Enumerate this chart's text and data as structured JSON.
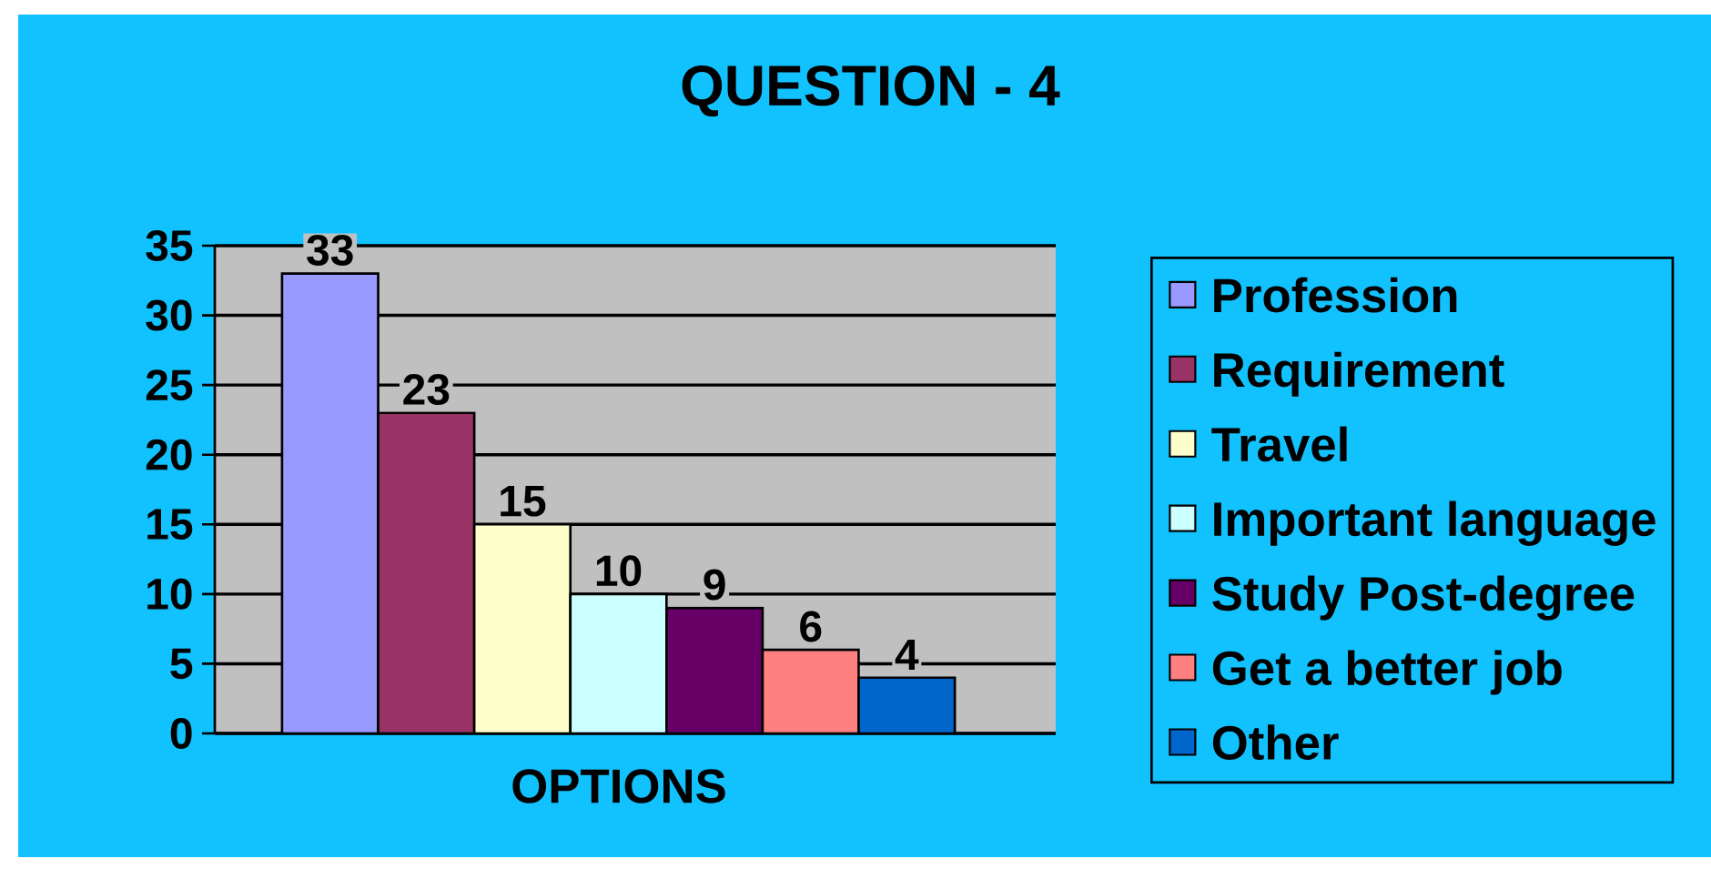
{
  "chart_data": {
    "type": "bar",
    "title": "QUESTION - 4",
    "xlabel": "OPTIONS",
    "categories": [
      null
    ],
    "series": [
      {
        "name": "Profession",
        "color": "#9999ff",
        "values": [
          33
        ]
      },
      {
        "name": "Requirement",
        "color": "#993366",
        "values": [
          23
        ]
      },
      {
        "name": "Travel",
        "color": "#ffffcc",
        "values": [
          15
        ]
      },
      {
        "name": "Important language",
        "color": "#ccffff",
        "values": [
          10
        ]
      },
      {
        "name": "Study Post-degree",
        "color": "#660066",
        "values": [
          9
        ]
      },
      {
        "name": "Get a better job",
        "color": "#ff8080",
        "values": [
          6
        ]
      },
      {
        "name": "Other",
        "color": "#0066cc",
        "values": [
          4
        ]
      }
    ],
    "ylim": [
      0,
      35
    ],
    "yticks": [
      0,
      5,
      10,
      15,
      20,
      25,
      30,
      35
    ],
    "grid": "y",
    "legend": "right",
    "data_labels": true
  }
}
